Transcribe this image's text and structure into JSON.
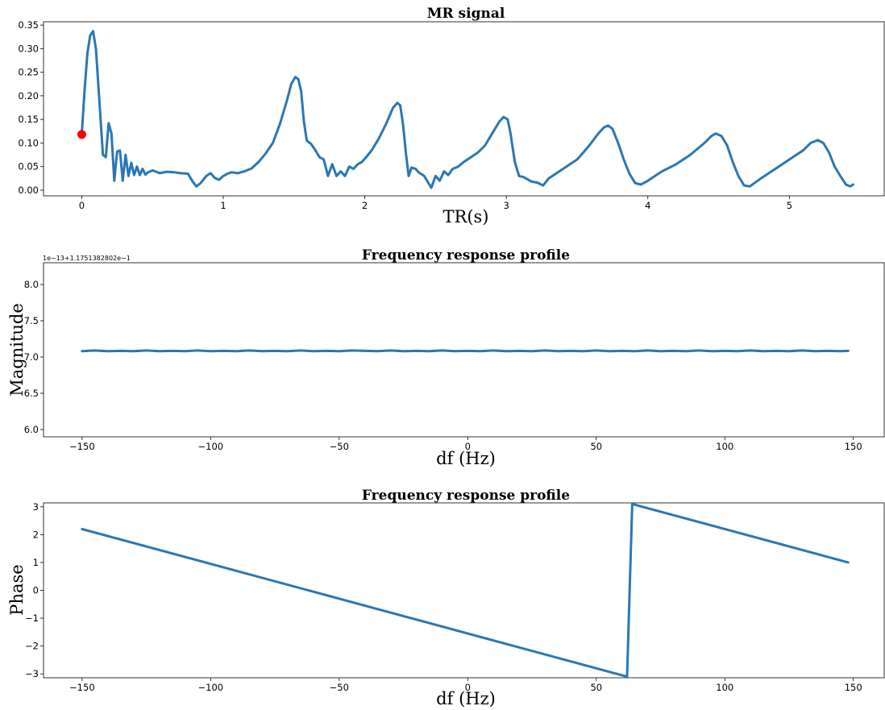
{
  "chart_data": [
    {
      "type": "line",
      "title": "MR signal",
      "xlabel": "TR(s)",
      "ylabel": "",
      "xlim": [
        -0.27,
        5.67
      ],
      "ylim": [
        -0.012,
        0.357
      ],
      "xticks": [
        0,
        1,
        2,
        3,
        4,
        5
      ],
      "xtick_labels": [
        "0",
        "1",
        "2",
        "3",
        "4",
        "5"
      ],
      "yticks": [
        0,
        0.05,
        0.1,
        0.15,
        0.2,
        0.25,
        0.3,
        0.35
      ],
      "ytick_labels": [
        "0.00",
        "0.05",
        "0.10",
        "0.15",
        "0.20",
        "0.25",
        "0.30",
        "0.35"
      ],
      "grid": false,
      "line_color": "#2a77b4",
      "series": [
        {
          "x": [
            0,
            0.02,
            0.04,
            0.06,
            0.08,
            0.1,
            0.12,
            0.15,
            0.17,
            0.19,
            0.21,
            0.23,
            0.25,
            0.27,
            0.29,
            0.31,
            0.33,
            0.35,
            0.37,
            0.39,
            0.41,
            0.43,
            0.45,
            0.47,
            0.5,
            0.55,
            0.6,
            0.65,
            0.7,
            0.75,
            0.78,
            0.81,
            0.84,
            0.88,
            0.91,
            0.94,
            0.97,
            1.0,
            1.03,
            1.06,
            1.1,
            1.15,
            1.2,
            1.25,
            1.3,
            1.35,
            1.4,
            1.45,
            1.48,
            1.51,
            1.53,
            1.55,
            1.57,
            1.59,
            1.62,
            1.65,
            1.68,
            1.71,
            1.74,
            1.77,
            1.8,
            1.83,
            1.86,
            1.89,
            1.92,
            1.95,
            1.98,
            2.01,
            2.05,
            2.1,
            2.15,
            2.2,
            2.23,
            2.25,
            2.27,
            2.29,
            2.31,
            2.33,
            2.36,
            2.38,
            2.42,
            2.47,
            2.5,
            2.53,
            2.56,
            2.59,
            2.62,
            2.66,
            2.7,
            2.75,
            2.8,
            2.85,
            2.9,
            2.95,
            2.98,
            3.01,
            3.03,
            3.06,
            3.09,
            3.12,
            3.18,
            3.22,
            3.26,
            3.3,
            3.35,
            3.4,
            3.45,
            3.5,
            3.55,
            3.6,
            3.65,
            3.69,
            3.72,
            3.75,
            3.79,
            3.83,
            3.87,
            3.91,
            3.95,
            4.0,
            4.05,
            4.1,
            4.2,
            4.3,
            4.4,
            4.45,
            4.48,
            4.52,
            4.56,
            4.6,
            4.64,
            4.68,
            4.72,
            4.8,
            4.9,
            5.0,
            5.1,
            5.15,
            5.2,
            5.24,
            5.28,
            5.32,
            5.36,
            5.4,
            5.43,
            5.45
          ],
          "y": [
            0.118,
            0.21,
            0.29,
            0.328,
            0.337,
            0.3,
            0.21,
            0.075,
            0.07,
            0.142,
            0.12,
            0.02,
            0.082,
            0.084,
            0.02,
            0.075,
            0.03,
            0.058,
            0.032,
            0.05,
            0.032,
            0.045,
            0.033,
            0.038,
            0.042,
            0.036,
            0.039,
            0.038,
            0.036,
            0.035,
            0.02,
            0.008,
            0.015,
            0.03,
            0.036,
            0.026,
            0.022,
            0.03,
            0.035,
            0.038,
            0.036,
            0.04,
            0.046,
            0.06,
            0.078,
            0.1,
            0.14,
            0.19,
            0.225,
            0.24,
            0.235,
            0.21,
            0.145,
            0.105,
            0.098,
            0.085,
            0.07,
            0.065,
            0.03,
            0.055,
            0.03,
            0.04,
            0.03,
            0.05,
            0.045,
            0.055,
            0.06,
            0.07,
            0.085,
            0.11,
            0.14,
            0.175,
            0.185,
            0.18,
            0.14,
            0.08,
            0.03,
            0.048,
            0.045,
            0.038,
            0.03,
            0.005,
            0.03,
            0.02,
            0.04,
            0.032,
            0.045,
            0.05,
            0.06,
            0.07,
            0.08,
            0.095,
            0.12,
            0.145,
            0.155,
            0.15,
            0.12,
            0.06,
            0.03,
            0.028,
            0.018,
            0.016,
            0.01,
            0.025,
            0.035,
            0.045,
            0.055,
            0.065,
            0.082,
            0.1,
            0.12,
            0.133,
            0.137,
            0.13,
            0.1,
            0.065,
            0.035,
            0.015,
            0.012,
            0.02,
            0.03,
            0.04,
            0.055,
            0.075,
            0.1,
            0.115,
            0.12,
            0.115,
            0.095,
            0.06,
            0.03,
            0.01,
            0.008,
            0.025,
            0.045,
            0.065,
            0.085,
            0.1,
            0.106,
            0.1,
            0.08,
            0.05,
            0.03,
            0.012,
            0.008,
            0.012
          ]
        }
      ],
      "marker": {
        "x": 0.0,
        "y": 0.118,
        "color": "#ff0000"
      }
    },
    {
      "type": "line",
      "title": "Frequency response profile",
      "xlabel": "df (Hz)",
      "ylabel": "Magnitude",
      "axis_offset_text": "1e−13+1.1751382802e−1",
      "xlim": [
        -165,
        162
      ],
      "ylim": [
        5.9,
        8.3
      ],
      "xticks": [
        -150,
        -100,
        -50,
        0,
        50,
        100,
        150
      ],
      "xtick_labels": [
        "−150",
        "−100",
        "−50",
        "0",
        "50",
        "100",
        "150"
      ],
      "yticks": [
        6.0,
        6.5,
        7.0,
        7.5,
        8.0
      ],
      "ytick_labels": [
        "6.0",
        "6.5",
        "7.0",
        "7.5",
        "8.0"
      ],
      "grid": false,
      "line_color": "#2a77b4",
      "series": [
        {
          "x": [
            -150,
            -145,
            -140,
            -135,
            -130,
            -125,
            -120,
            -115,
            -110,
            -105,
            -100,
            -95,
            -90,
            -85,
            -80,
            -75,
            -70,
            -65,
            -60,
            -55,
            -50,
            -45,
            -40,
            -35,
            -30,
            -25,
            -20,
            -15,
            -10,
            -5,
            0,
            5,
            10,
            15,
            20,
            25,
            30,
            35,
            40,
            45,
            50,
            55,
            60,
            65,
            70,
            75,
            80,
            85,
            90,
            95,
            100,
            105,
            110,
            115,
            120,
            125,
            130,
            135,
            140,
            145,
            148
          ],
          "y": [
            7.08,
            7.09,
            7.08,
            7.085,
            7.08,
            7.09,
            7.08,
            7.085,
            7.08,
            7.09,
            7.08,
            7.085,
            7.08,
            7.09,
            7.08,
            7.085,
            7.08,
            7.09,
            7.08,
            7.085,
            7.08,
            7.09,
            7.085,
            7.08,
            7.09,
            7.08,
            7.085,
            7.08,
            7.09,
            7.08,
            7.085,
            7.08,
            7.09,
            7.08,
            7.085,
            7.08,
            7.09,
            7.08,
            7.085,
            7.08,
            7.09,
            7.08,
            7.085,
            7.08,
            7.09,
            7.08,
            7.085,
            7.08,
            7.09,
            7.08,
            7.085,
            7.08,
            7.09,
            7.08,
            7.085,
            7.08,
            7.09,
            7.08,
            7.085,
            7.08,
            7.085
          ]
        }
      ]
    },
    {
      "type": "line",
      "title": "Frequency response profile",
      "xlabel": "df (Hz)",
      "ylabel": "Phase",
      "xlim": [
        -165,
        162
      ],
      "ylim": [
        -3.14,
        3.14
      ],
      "xticks": [
        -150,
        -100,
        -50,
        0,
        50,
        100,
        150
      ],
      "xtick_labels": [
        "−150",
        "−100",
        "−50",
        "0",
        "50",
        "100",
        "150"
      ],
      "yticks": [
        -3,
        -2,
        -1,
        0,
        1,
        2,
        3
      ],
      "ytick_labels": [
        "−3",
        "−2",
        "−1",
        "0",
        "1",
        "2",
        "3"
      ],
      "grid": false,
      "line_color": "#2a77b4",
      "series": [
        {
          "x": [
            -150,
            62,
            64,
            148
          ],
          "y": [
            2.2,
            -3.1,
            3.1,
            1.0
          ]
        }
      ]
    }
  ]
}
